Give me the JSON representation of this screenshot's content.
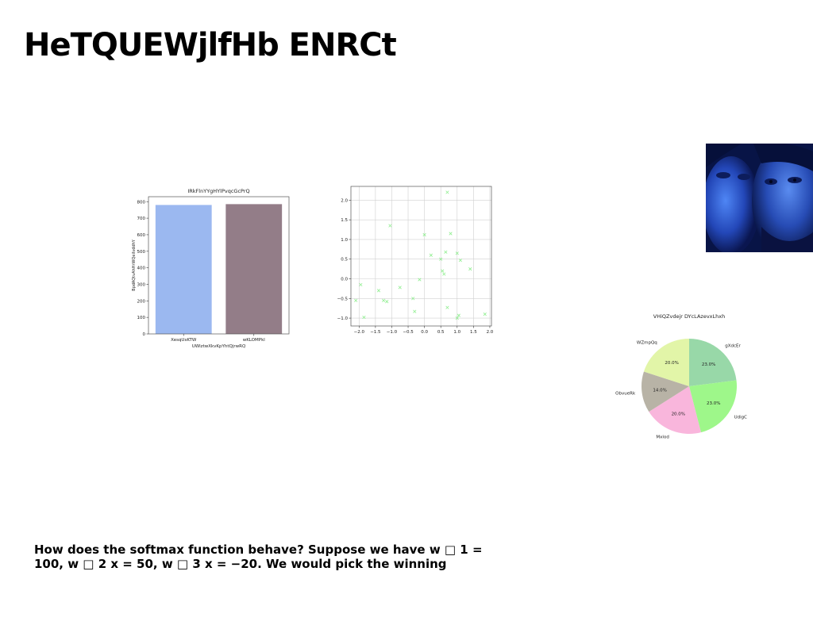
{
  "slide": {
    "title": "HeTQUEWjlfHb ENRCt",
    "caption": "How does the softmax function behave? Suppose we have w □ 1 = 100, w □ 2 x = 50, w □ 3 x = −20. We would pick the winning"
  },
  "chart_data": [
    {
      "type": "bar",
      "title": "IRkFlnYYgHYlPvqcGcPrQ",
      "xlabel": "UWlztwXkvKpYhtQjrwRQ",
      "ylabel": "BpdAQtvAhHrWQeiIvddhY",
      "categories": [
        "XesqUsKTW",
        "wKLOMPkl"
      ],
      "values": [
        780,
        785
      ],
      "colors": [
        "#9bb8f0",
        "#937d88"
      ],
      "ylim": [
        0,
        830
      ],
      "yticks": [
        0,
        100,
        200,
        300,
        400,
        500,
        600,
        700,
        800
      ],
      "grid": false
    },
    {
      "type": "scatter",
      "title": "",
      "xlabel": "",
      "ylabel": "",
      "marker": "x",
      "color": "#90ee90",
      "xlim": [
        -2.25,
        2.05
      ],
      "ylim": [
        -1.2,
        2.35
      ],
      "xticks": [
        -2.0,
        -1.5,
        -1.0,
        -0.5,
        0.0,
        0.5,
        1.0,
        1.5,
        2.0
      ],
      "yticks": [
        -1.0,
        -0.5,
        0.0,
        0.5,
        1.0,
        1.5,
        2.0
      ],
      "grid": true,
      "points": [
        [
          -2.1,
          -0.55
        ],
        [
          -1.95,
          -0.15
        ],
        [
          -1.85,
          -0.98
        ],
        [
          -1.4,
          -0.3
        ],
        [
          -1.25,
          -0.55
        ],
        [
          -1.15,
          -0.58
        ],
        [
          -1.05,
          1.35
        ],
        [
          -0.75,
          -0.22
        ],
        [
          -0.35,
          -0.5
        ],
        [
          -0.3,
          -0.83
        ],
        [
          -0.15,
          -0.02
        ],
        [
          0.0,
          1.12
        ],
        [
          0.2,
          0.6
        ],
        [
          0.5,
          0.5
        ],
        [
          0.55,
          0.2
        ],
        [
          0.6,
          0.12
        ],
        [
          0.65,
          0.68
        ],
        [
          0.7,
          2.2
        ],
        [
          0.7,
          -0.73
        ],
        [
          0.8,
          1.15
        ],
        [
          1.0,
          0.65
        ],
        [
          1.0,
          -1.0
        ],
        [
          1.05,
          -0.93
        ],
        [
          1.1,
          0.47
        ],
        [
          1.4,
          0.25
        ],
        [
          1.85,
          -0.9
        ]
      ]
    },
    {
      "type": "pie",
      "title": "VHiQZvdejr DYcLAzevxLhxh",
      "slices": [
        {
          "label": "gXdcEr",
          "value": 23.0,
          "pct_label": "23.0%",
          "color": "#98d8a8"
        },
        {
          "label": "UdigC",
          "value": 23.0,
          "pct_label": "23.0%",
          "color": "#9ef78a"
        },
        {
          "label": "Mxlod",
          "value": 20.0,
          "pct_label": "20.0%",
          "color": "#f9b6dc"
        },
        {
          "label": "ObvueRk",
          "value": 14.0,
          "pct_label": "14.0%",
          "color": "#b8b3a6"
        },
        {
          "label": "WZmpQq",
          "value": 20.0,
          "pct_label": "20.0%",
          "color": "#e2f5a8"
        }
      ],
      "start_angle": 90,
      "direction": "clockwise"
    }
  ]
}
